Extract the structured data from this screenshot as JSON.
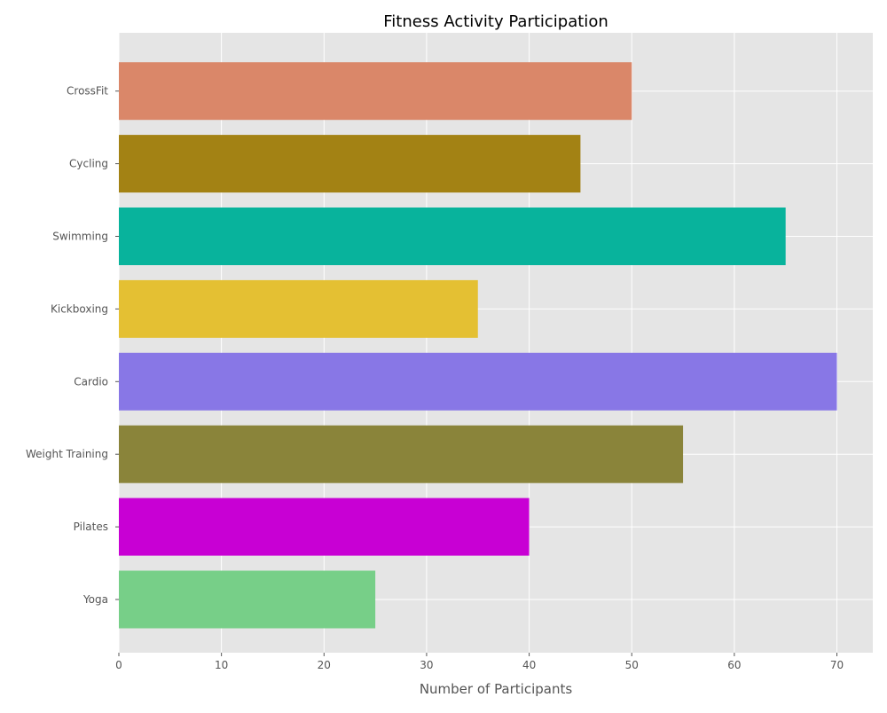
{
  "chart_data": {
    "type": "bar",
    "orientation": "horizontal",
    "title": "Fitness Activity Participation",
    "xlabel": "Number of Participants",
    "ylabel": "",
    "categories": [
      "Yoga",
      "Pilates",
      "Weight Training",
      "Cardio",
      "Kickboxing",
      "Swimming",
      "Cycling",
      "CrossFit"
    ],
    "values": [
      25,
      40,
      55,
      70,
      35,
      65,
      45,
      50
    ],
    "colors": [
      "#77cf88",
      "#c800d4",
      "#8a843a",
      "#8877e6",
      "#e4c033",
      "#08b39c",
      "#a38214",
      "#da8769"
    ],
    "xlim": [
      0,
      73.5
    ],
    "xticks": [
      0,
      10,
      20,
      30,
      40,
      50,
      60,
      70
    ],
    "grid": true,
    "background": "#e5e5e5",
    "gridColor": "#ffffff",
    "legend": "none"
  }
}
